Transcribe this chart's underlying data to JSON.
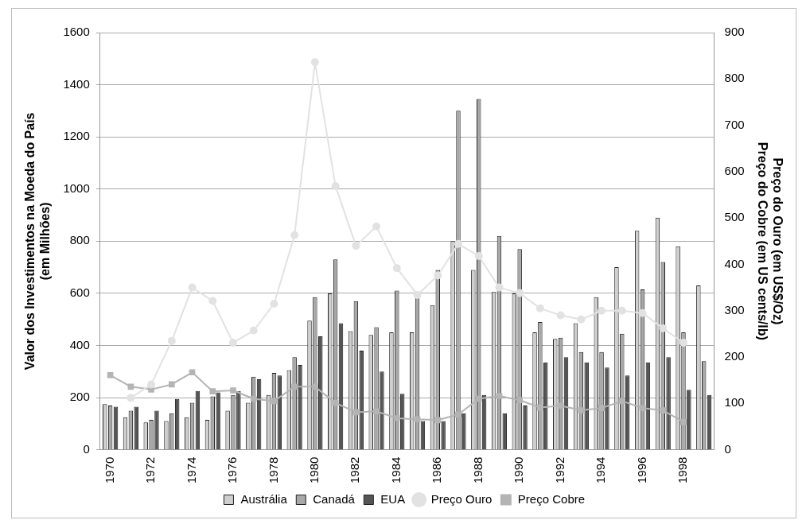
{
  "chart_data": {
    "type": "bar",
    "ylabel": "Valor dos Investimentos na Moeda do País\n(em Milhões)",
    "y2label": "Preço do Ouro (em US$/Oz)\nPreço do Cobre (em US cents/lb)",
    "categories": [
      "1970",
      null,
      "1972",
      null,
      "1974",
      null,
      "1976",
      null,
      "1978",
      null,
      "1980",
      null,
      "1982",
      null,
      "1984",
      null,
      "1986",
      null,
      "1988",
      null,
      "1990",
      null,
      "1992",
      null,
      "1994",
      null,
      "1996",
      null,
      "1998",
      null
    ],
    "series": [
      {
        "name": "Austrália",
        "color": "#cfcfcf",
        "values": [
          175,
          125,
          105,
          110,
          125,
          115,
          150,
          180,
          210,
          305,
          495,
          600,
          455,
          440,
          450,
          450,
          555,
          800,
          690,
          605,
          600,
          450,
          425,
          485,
          585,
          700,
          840,
          890,
          780,
          630
        ]
      },
      {
        "name": "Canadá",
        "color": "#a8a8a8",
        "values": [
          170,
          150,
          115,
          140,
          180,
          205,
          210,
          280,
          295,
          355,
          585,
          730,
          570,
          470,
          610,
          585,
          690,
          1300,
          1345,
          820,
          770,
          490,
          430,
          375,
          375,
          445,
          615,
          720,
          450,
          340
        ]
      },
      {
        "name": "EUA",
        "color": "#555555",
        "values": [
          165,
          165,
          150,
          195,
          225,
          220,
          225,
          270,
          285,
          325,
          435,
          485,
          380,
          300,
          215,
          110,
          110,
          140,
          210,
          140,
          170,
          335,
          355,
          335,
          315,
          285,
          335,
          355,
          230,
          210
        ]
      },
      {
        "name": "Preço Ouro",
        "type": "line",
        "axis": "y2",
        "color": "#e2e2e2",
        "marker": "circle",
        "values": [
          null,
          112,
          141,
          235,
          350,
          321,
          231,
          257,
          315,
          463,
          836,
          569,
          440,
          482,
          392,
          334,
          376,
          444,
          418,
          350,
          338,
          305,
          290,
          281,
          300,
          300,
          295,
          262,
          231,
          null
        ]
      },
      {
        "name": "Preço Cobre",
        "type": "line",
        "axis": "y2",
        "color": "#b4b4b4",
        "marker": "square",
        "values": [
          161,
          136,
          130,
          141,
          167,
          126,
          128,
          110,
          105,
          136,
          136,
          101,
          81,
          83,
          68,
          66,
          64,
          76,
          110,
          116,
          107,
          91,
          95,
          85,
          90,
          105,
          90,
          85,
          60,
          null
        ]
      }
    ],
    "ylim": [
      0,
      1600
    ],
    "yticks": [
      0,
      200,
      400,
      600,
      800,
      1000,
      1200,
      1400,
      1600
    ],
    "y2lim": [
      0,
      900
    ],
    "y2ticks": [
      0,
      100,
      200,
      300,
      400,
      500,
      600,
      700,
      800,
      900
    ],
    "grid": "y",
    "legend": "bottom"
  }
}
